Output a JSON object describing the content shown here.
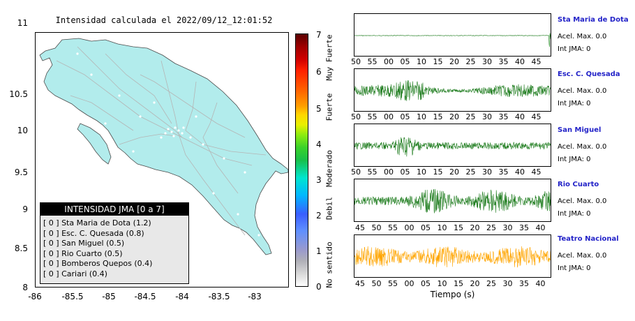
{
  "map": {
    "title": "Intensidad calculada el 2022/09/12_12:01:52",
    "y_ticks": [
      "11",
      "10.5",
      "10",
      "9.5",
      "9",
      "8.5",
      "8"
    ],
    "x_ticks": [
      "-86",
      "-85.5",
      "-85",
      "-84.5",
      "-84",
      "-83.5",
      "-83"
    ],
    "land_color": "#b2ecec",
    "road_color": "#b5b5b5"
  },
  "colorbar": {
    "ticks": [
      "0",
      "1",
      "2",
      "3",
      "4",
      "5",
      "6",
      "7"
    ],
    "labels": [
      "No sentido",
      "Debil",
      "Moderado",
      "Fuerte",
      "Muy Fuerte"
    ]
  },
  "legend": {
    "title": "INTENSIDAD JMA [0 a 7]",
    "items": [
      "[ 0 ]  Sta Maria de Dota (1.2)",
      "[ 0 ]  Esc. C. Quesada (0.8)",
      "[ 0 ]  San Miguel (0.5)",
      "[ 0 ]  Rio Cuarto (0.5)",
      "[ 0 ]  Bomberos Quepos (0.4)",
      "[ 0 ]  Cariari (0.4)"
    ]
  },
  "traces": [
    {
      "station": "Sta Maria de Dota",
      "accel": "Acel. Max. 0.0",
      "int": "Int JMA: 0",
      "color": "#1a7a1a",
      "ticks": [
        "50",
        "55",
        "00",
        "05",
        "10",
        "15",
        "20",
        "25",
        "30",
        "35",
        "40",
        "45"
      ]
    },
    {
      "station": "Esc. C. Quesada",
      "accel": "Acel. Max. 0.0",
      "int": "Int JMA: 0",
      "color": "#1a7a1a",
      "ticks": [
        "50",
        "55",
        "00",
        "05",
        "10",
        "15",
        "20",
        "25",
        "30",
        "35",
        "40",
        "45"
      ]
    },
    {
      "station": "San Miguel",
      "accel": "Acel. Max. 0.0",
      "int": "Int JMA: 0",
      "color": "#1a7a1a",
      "ticks": [
        "50",
        "55",
        "00",
        "05",
        "10",
        "15",
        "20",
        "25",
        "30",
        "35",
        "40",
        "45"
      ]
    },
    {
      "station": "Rio Cuarto",
      "accel": "Acel. Max. 0.0",
      "int": "Int JMA: 0",
      "color": "#1a7a1a",
      "ticks": [
        "45",
        "50",
        "55",
        "00",
        "05",
        "10",
        "15",
        "20",
        "25",
        "30",
        "35",
        "40"
      ]
    },
    {
      "station": "Teatro Nacional",
      "accel": "Acel. Max. 0.0",
      "int": "Int JMA: 0",
      "color": "#ffa500",
      "ticks": [
        "45",
        "50",
        "55",
        "00",
        "05",
        "10",
        "15",
        "20",
        "25",
        "30",
        "35",
        "40"
      ]
    }
  ],
  "time_axis_label": "Tiempo (s)"
}
